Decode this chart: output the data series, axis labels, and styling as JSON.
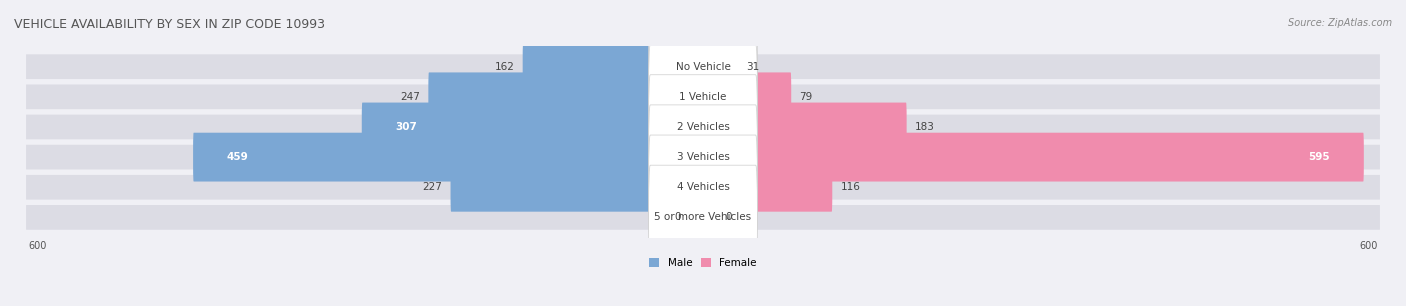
{
  "title": "VEHICLE AVAILABILITY BY SEX IN ZIP CODE 10993",
  "source": "Source: ZipAtlas.com",
  "categories": [
    "No Vehicle",
    "1 Vehicle",
    "2 Vehicles",
    "3 Vehicles",
    "4 Vehicles",
    "5 or more Vehicles"
  ],
  "male_values": [
    162,
    247,
    307,
    459,
    227,
    0
  ],
  "female_values": [
    31,
    79,
    183,
    595,
    116,
    0
  ],
  "male_color": "#7ba7d4",
  "female_color": "#f08cad",
  "male_color_light": "#a8c8e8",
  "female_color_light": "#f5b8cc",
  "bar_bg_color": "#e8e8ec",
  "label_bg_color": "#ffffff",
  "x_max": 600,
  "x_min": -600,
  "fig_width": 14.06,
  "fig_height": 3.06,
  "title_fontsize": 9,
  "label_fontsize": 7.5,
  "value_fontsize": 7.5,
  "axis_fontsize": 7,
  "source_fontsize": 7
}
